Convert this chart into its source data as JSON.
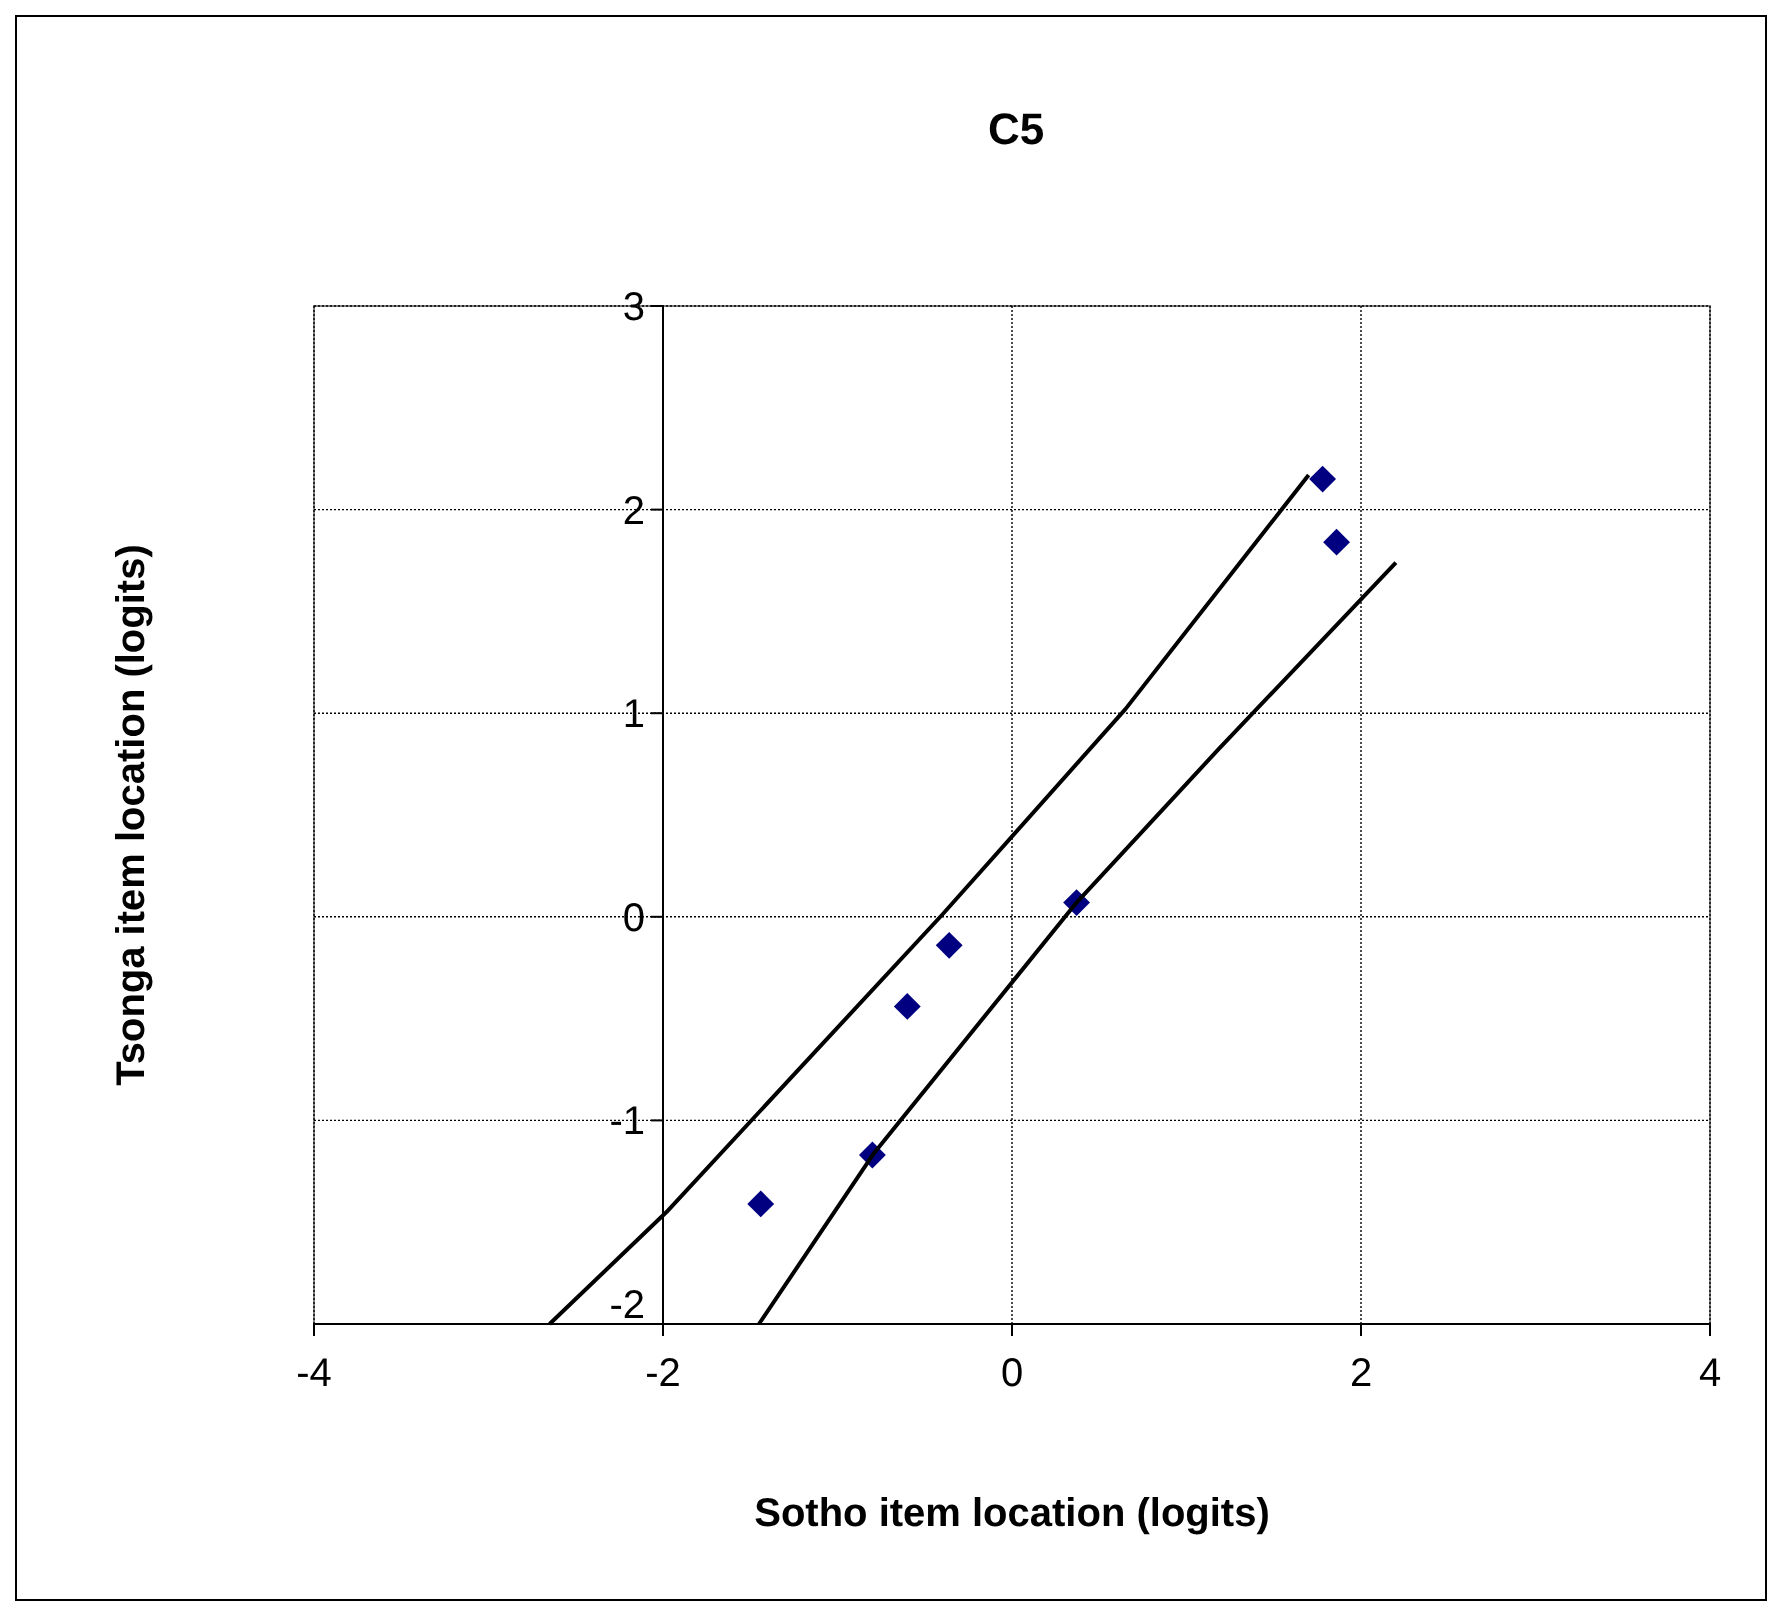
{
  "chart_data": {
    "type": "scatter",
    "title": "C5",
    "xlabel": "Sotho item location (logits)",
    "ylabel": "Tsonga item location (logits)",
    "xlim": [
      -4,
      4
    ],
    "xticks": [
      -4,
      -2,
      0,
      2,
      4
    ],
    "ylim": [
      -2,
      3
    ],
    "yticks": [
      -2,
      -1,
      0,
      1,
      2,
      3
    ],
    "grid": true,
    "series": [
      {
        "color": "#000080",
        "marker": "diamond",
        "x": [
          1.78,
          1.86,
          0.37,
          -0.36,
          -0.6,
          -0.8,
          -1.44
        ],
        "values": [
          2.15,
          1.84,
          0.07,
          -0.14,
          -0.44,
          -1.17,
          -1.41
        ]
      },
      {
        "type": "line",
        "color": "#000000",
        "marker": "none",
        "x": [
          -2.65,
          -1.98,
          -1.45,
          -0.4,
          0.65,
          1.7
        ],
        "values": [
          -2.0,
          -1.45,
          -0.96,
          0.01,
          1.02,
          2.17
        ]
      },
      {
        "type": "line",
        "color": "#000000",
        "marker": "none",
        "x": [
          -1.45,
          -0.79,
          0.37,
          1.18,
          2.2
        ],
        "values": [
          -2.0,
          -1.16,
          0.07,
          0.82,
          1.74
        ]
      }
    ]
  }
}
